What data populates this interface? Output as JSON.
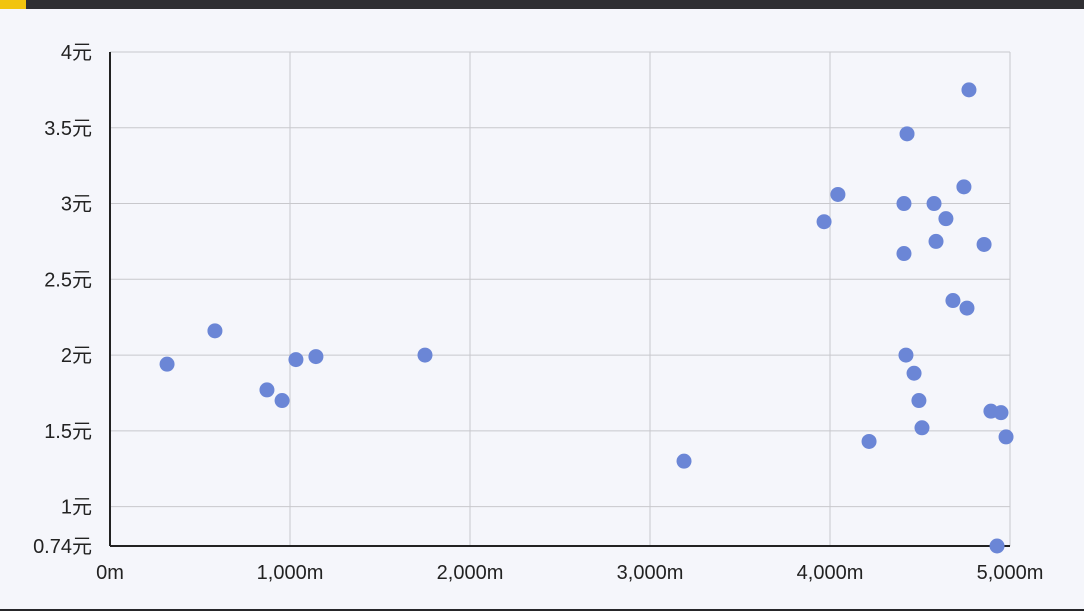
{
  "colors": {
    "background": "#f5f6fb",
    "topbar": "#2f2f33",
    "topbar_accent": "#f1c40f",
    "grid": "#c8c8cc",
    "axis": "#222222",
    "point": "#6b86d6"
  },
  "chart_data": {
    "type": "scatter",
    "title": "",
    "xlabel": "",
    "ylabel": "",
    "xlim": [
      0,
      5000
    ],
    "ylim": [
      0.74,
      4
    ],
    "grid": true,
    "x_ticks": [
      {
        "value": 0,
        "label": "0m"
      },
      {
        "value": 1000,
        "label": "1,000m"
      },
      {
        "value": 2000,
        "label": "2,000m"
      },
      {
        "value": 3000,
        "label": "3,000m"
      },
      {
        "value": 4000,
        "label": "4,000m"
      },
      {
        "value": 5000,
        "label": "5,000m"
      }
    ],
    "y_ticks": [
      {
        "value": 0.74,
        "label": "0.74元"
      },
      {
        "value": 1,
        "label": "1元"
      },
      {
        "value": 1.5,
        "label": "1.5元"
      },
      {
        "value": 2,
        "label": "2元"
      },
      {
        "value": 2.5,
        "label": "2.5元"
      },
      {
        "value": 3,
        "label": "3元"
      },
      {
        "value": 3.5,
        "label": "3.5元"
      },
      {
        "value": 4,
        "label": "4元"
      }
    ],
    "points": [
      {
        "x": 317,
        "y": 1.94
      },
      {
        "x": 583,
        "y": 2.16
      },
      {
        "x": 872,
        "y": 1.77
      },
      {
        "x": 956,
        "y": 1.7
      },
      {
        "x": 1033,
        "y": 1.97
      },
      {
        "x": 1144,
        "y": 1.99
      },
      {
        "x": 1750,
        "y": 2.0
      },
      {
        "x": 3189,
        "y": 1.3
      },
      {
        "x": 3967,
        "y": 2.88
      },
      {
        "x": 4044,
        "y": 3.06
      },
      {
        "x": 4217,
        "y": 1.43
      },
      {
        "x": 4411,
        "y": 2.67
      },
      {
        "x": 4411,
        "y": 3.0
      },
      {
        "x": 4422,
        "y": 2.0
      },
      {
        "x": 4428,
        "y": 3.46
      },
      {
        "x": 4467,
        "y": 1.88
      },
      {
        "x": 4494,
        "y": 1.7
      },
      {
        "x": 4511,
        "y": 1.52
      },
      {
        "x": 4578,
        "y": 3.0
      },
      {
        "x": 4589,
        "y": 2.75
      },
      {
        "x": 4644,
        "y": 2.9
      },
      {
        "x": 4683,
        "y": 2.36
      },
      {
        "x": 4744,
        "y": 3.11
      },
      {
        "x": 4761,
        "y": 2.31
      },
      {
        "x": 4772,
        "y": 3.75
      },
      {
        "x": 4856,
        "y": 2.73
      },
      {
        "x": 4894,
        "y": 1.63
      },
      {
        "x": 4928,
        "y": 0.74
      },
      {
        "x": 4950,
        "y": 1.62
      },
      {
        "x": 4978,
        "y": 1.46
      }
    ]
  }
}
